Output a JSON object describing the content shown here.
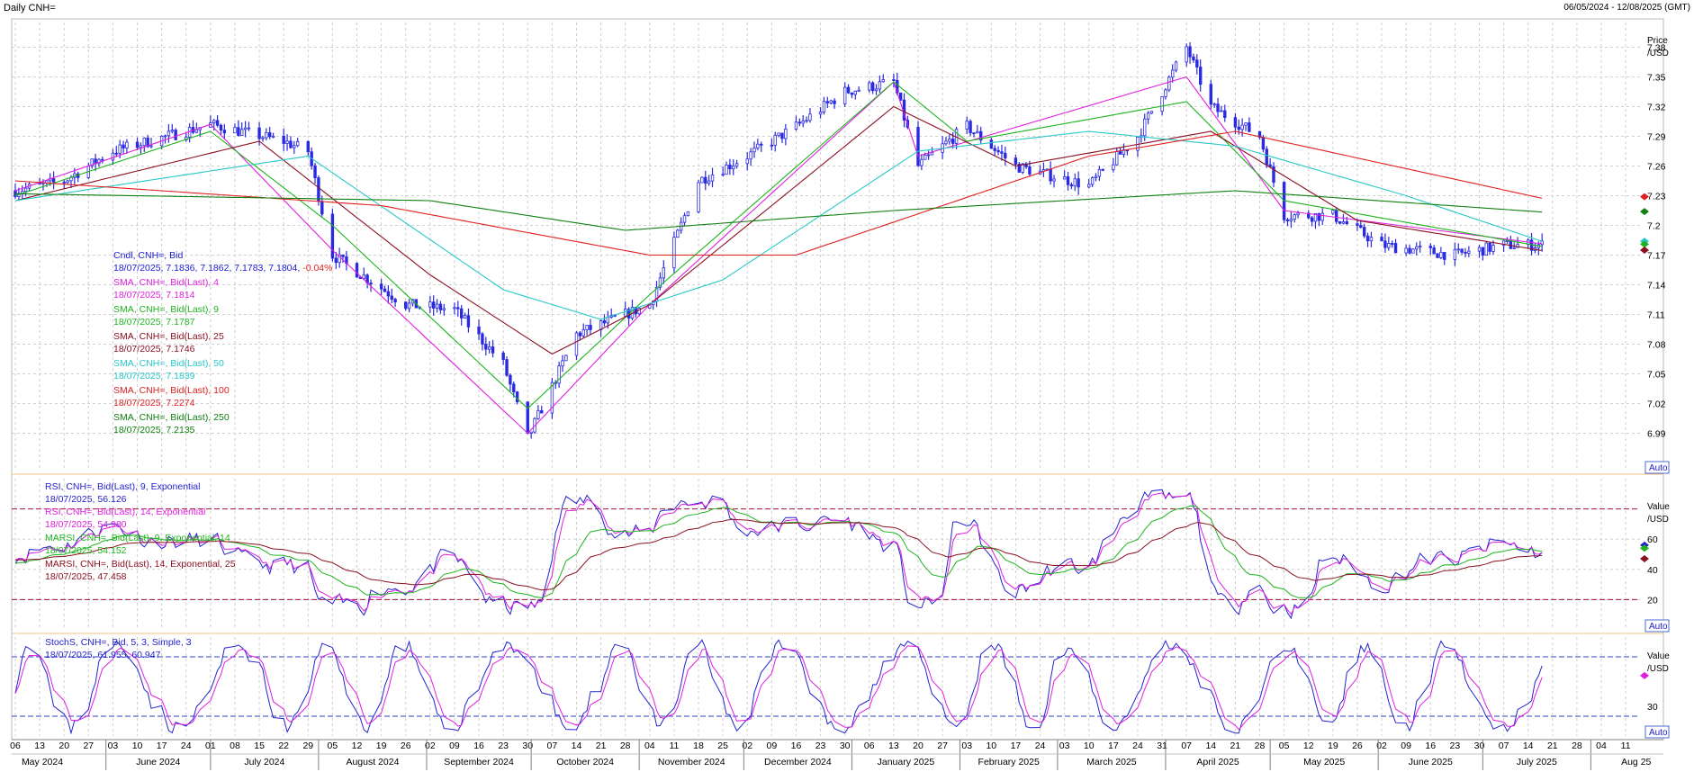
{
  "header": {
    "title": "Daily CNH=",
    "date_range": "06/05/2024 - 12/08/2025 (GMT)"
  },
  "buttons": {
    "auto": "Auto"
  },
  "price_panel": {
    "axis_title": [
      "Price",
      "/USD"
    ],
    "ticks": [
      6.99,
      7.02,
      7.05,
      7.08,
      7.11,
      7.14,
      7.17,
      7.2,
      7.23,
      7.26,
      7.29,
      7.32,
      7.35,
      7.38
    ],
    "tick_labels": [
      "6.99",
      "7.02",
      "7.05",
      "7.08",
      "7.11",
      "7.14",
      "7.17",
      "7.2",
      "7.23",
      "7.26",
      "7.29",
      "7.32",
      "7.35",
      "7.38"
    ],
    "ylim": [
      6.955,
      7.405
    ],
    "legend": [
      {
        "name": "Cndl, CNH=, Bid",
        "value": "18/07/2025, 7.1836, 7.1862, 7.1783, 7.1804,",
        "change": "-0.04%",
        "color": "#1a1ad8"
      },
      {
        "name": "SMA, CNH=, Bid(Last), 4",
        "value": "18/07/2025, 7.1814",
        "color": "#e01ee0"
      },
      {
        "name": "SMA, CNH=, Bid(Last), 9",
        "value": "18/07/2025, 7.1787",
        "color": "#1eb41e"
      },
      {
        "name": "SMA, CNH=, Bid(Last), 25",
        "value": "18/07/2025, 7.1746",
        "color": "#8b1020"
      },
      {
        "name": "SMA, CNH=, Bid(Last), 50",
        "value": "18/07/2025, 7.1839",
        "color": "#28c8c8"
      },
      {
        "name": "SMA, CNH=, Bid(Last), 100",
        "value": "18/07/2025, 7.2274",
        "color": "#e02020"
      },
      {
        "name": "SMA, CNH=, Bid(Last), 250",
        "value": "18/07/2025, 7.2135",
        "color": "#108010"
      }
    ]
  },
  "rsi_panel": {
    "axis_title": [
      "Value",
      "/USD"
    ],
    "ticks": [
      20,
      40,
      60
    ],
    "tick_labels": [
      "20",
      "40",
      "60"
    ],
    "ylim": [
      0,
      100
    ],
    "legend": [
      {
        "name": "RSI, CNH=, Bid(Last), 9, Exponential",
        "value": "18/07/2025, 56.126",
        "color": "#2323d0"
      },
      {
        "name": "RSI, CNH=, Bid(Last), 14, Exponential",
        "value": "18/07/2025, 54.980",
        "color": "#e01ee0"
      },
      {
        "name": "MARSI, CNH=, Bid(Last), 9, Exponential, 14",
        "value": "18/07/2025, 54.152",
        "color": "#1eb41e"
      },
      {
        "name": "MARSI, CNH=, Bid(Last), 14, Exponential, 25",
        "value": "18/07/2025, 47.458",
        "color": "#8b1020"
      }
    ]
  },
  "stoch_panel": {
    "axis_title": [
      "Value",
      "/USD"
    ],
    "ticks": [
      30
    ],
    "tick_labels": [
      "30"
    ],
    "ylim": [
      0,
      100
    ],
    "legend": [
      {
        "name": "StochS, CNH=, Bid, 5, 3, Simple, 3",
        "value": "18/07/2025, 61.955, 60.947",
        "color": "#2323d0"
      }
    ]
  },
  "x_axis": {
    "day_labels": [
      "06",
      "13",
      "20",
      "27",
      "03",
      "10",
      "17",
      "24",
      "01",
      "08",
      "15",
      "22",
      "29",
      "05",
      "12",
      "19",
      "26",
      "02",
      "09",
      "16",
      "23",
      "30",
      "07",
      "14",
      "21",
      "28",
      "04",
      "11",
      "18",
      "25",
      "02",
      "09",
      "16",
      "23",
      "30",
      "06",
      "13",
      "20",
      "27",
      "03",
      "10",
      "17",
      "24",
      "03",
      "10",
      "17",
      "24",
      "31",
      "07",
      "14",
      "21",
      "28",
      "05",
      "12",
      "19",
      "26",
      "02",
      "09",
      "16",
      "23",
      "30",
      "07",
      "14",
      "21",
      "28",
      "04",
      "11"
    ],
    "month_labels": [
      "May 2024",
      "June 2024",
      "July 2024",
      "August 2024",
      "September 2024",
      "October 2024",
      "November 2024",
      "December 2024",
      "January 2025",
      "February 2025",
      "March 2025",
      "April 2025",
      "May 2025",
      "June 2025",
      "July 2025",
      "Aug 25"
    ]
  },
  "chart_data": {
    "type": "line",
    "title": "Daily CNH=",
    "xlabel": "",
    "ylabel": "Price /USD",
    "ylim": [
      6.955,
      7.405
    ],
    "series_anchors": [
      {
        "name": "Cndl, CNH=, Bid",
        "x": [
          "06/05/2024",
          "20/05/2024",
          "03/06/2024",
          "01/07/2024",
          "22/07/2024",
          "29/07/2024",
          "05/08/2024",
          "26/08/2024",
          "09/09/2024",
          "23/09/2024",
          "30/09/2024",
          "14/10/2024",
          "04/11/2024",
          "18/11/2024",
          "02/12/2024",
          "16/12/2024",
          "30/12/2024",
          "13/01/2025",
          "20/01/2025",
          "03/02/2025",
          "17/02/2025",
          "10/03/2025",
          "24/03/2025",
          "07/04/2025",
          "14/04/2025",
          "28/04/2025",
          "05/05/2025",
          "19/05/2025",
          "02/06/2025",
          "23/06/2025",
          "07/07/2025",
          "18/07/2025"
        ],
        "y": [
          7.235,
          7.245,
          7.275,
          7.302,
          7.285,
          7.275,
          7.17,
          7.12,
          7.115,
          7.06,
          6.985,
          7.09,
          7.12,
          7.245,
          7.27,
          7.3,
          7.335,
          7.345,
          7.26,
          7.3,
          7.26,
          7.24,
          7.29,
          7.38,
          7.32,
          7.29,
          7.21,
          7.21,
          7.18,
          7.17,
          7.18,
          7.1804
        ]
      },
      {
        "name": "SMA, CNH=, Bid(Last), 4",
        "x": [
          "06/05/2024",
          "01/07/2024",
          "05/08/2024",
          "30/09/2024",
          "04/11/2024",
          "13/01/2025",
          "20/01/2025",
          "07/04/2025",
          "05/05/2025",
          "18/07/2025"
        ],
        "y": [
          7.235,
          7.302,
          7.175,
          6.99,
          7.12,
          7.345,
          7.27,
          7.35,
          7.215,
          7.1814
        ]
      },
      {
        "name": "SMA, CNH=, Bid(Last), 9",
        "x": [
          "06/05/2024",
          "01/07/2024",
          "05/08/2024",
          "30/09/2024",
          "04/11/2024",
          "13/01/2025",
          "03/02/2025",
          "07/04/2025",
          "05/05/2025",
          "18/07/2025"
        ],
        "y": [
          7.23,
          7.295,
          7.2,
          7.015,
          7.13,
          7.345,
          7.285,
          7.325,
          7.225,
          7.1787
        ]
      },
      {
        "name": "SMA, CNH=, Bid(Last), 25",
        "x": [
          "06/05/2024",
          "15/07/2024",
          "02/09/2024",
          "07/10/2024",
          "04/11/2024",
          "13/01/2025",
          "17/02/2025",
          "14/04/2025",
          "26/05/2025",
          "18/07/2025"
        ],
        "y": [
          7.225,
          7.285,
          7.15,
          7.07,
          7.12,
          7.32,
          7.26,
          7.295,
          7.205,
          7.1746
        ]
      },
      {
        "name": "SMA, CNH=, Bid(Last), 50",
        "x": [
          "06/05/2024",
          "29/07/2024",
          "23/09/2024",
          "21/10/2024",
          "25/11/2024",
          "20/01/2025",
          "10/03/2025",
          "21/04/2025",
          "09/06/2025",
          "18/07/2025"
        ],
        "y": [
          7.225,
          7.27,
          7.135,
          7.105,
          7.145,
          7.275,
          7.295,
          7.28,
          7.23,
          7.1839
        ]
      },
      {
        "name": "SMA, CNH=, Bid(Last), 100",
        "x": [
          "06/05/2024",
          "19/08/2024",
          "04/11/2024",
          "16/12/2024",
          "10/03/2025",
          "21/04/2025",
          "18/07/2025"
        ],
        "y": [
          7.245,
          7.22,
          7.17,
          7.17,
          7.27,
          7.295,
          7.2274
        ]
      },
      {
        "name": "SMA, CNH=, Bid(Last), 250",
        "x": [
          "06/05/2024",
          "02/09/2024",
          "28/10/2024",
          "13/01/2025",
          "21/04/2025",
          "18/07/2025"
        ],
        "y": [
          7.232,
          7.225,
          7.195,
          7.215,
          7.235,
          7.2135
        ]
      }
    ]
  }
}
